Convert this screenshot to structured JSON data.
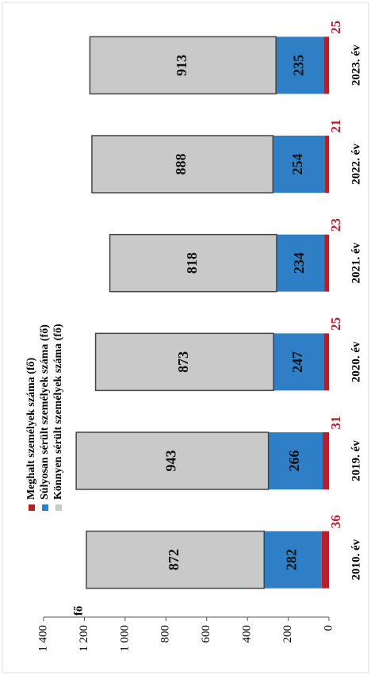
{
  "chart_data": {
    "type": "stacked-bar",
    "y_label": "fő",
    "categories": [
      "2010. év",
      "2019. év",
      "2020. év",
      "2021. év",
      "2022. év",
      "2023. év"
    ],
    "series": [
      {
        "name": "Meghalt személyek száma (fő)",
        "color": "#b3202a",
        "values": [
          36,
          31,
          25,
          23,
          21,
          25
        ]
      },
      {
        "name": "Súlyosan sérült személyek száma (fő)",
        "color": "#2f7fc6",
        "values": [
          282,
          266,
          247,
          234,
          254,
          235
        ]
      },
      {
        "name": "Könnyen sérült személyek száma (fő)",
        "color": "#c9c9c9",
        "values": [
          872,
          943,
          873,
          818,
          888,
          913
        ]
      }
    ],
    "ylim": [
      0,
      1400
    ],
    "yticks": [
      0,
      200,
      400,
      600,
      800,
      {
        "value": 1000,
        "label": "1 000"
      },
      {
        "value": 1200,
        "label": "1 200"
      },
      {
        "value": 1400,
        "label": "1 400"
      }
    ]
  }
}
